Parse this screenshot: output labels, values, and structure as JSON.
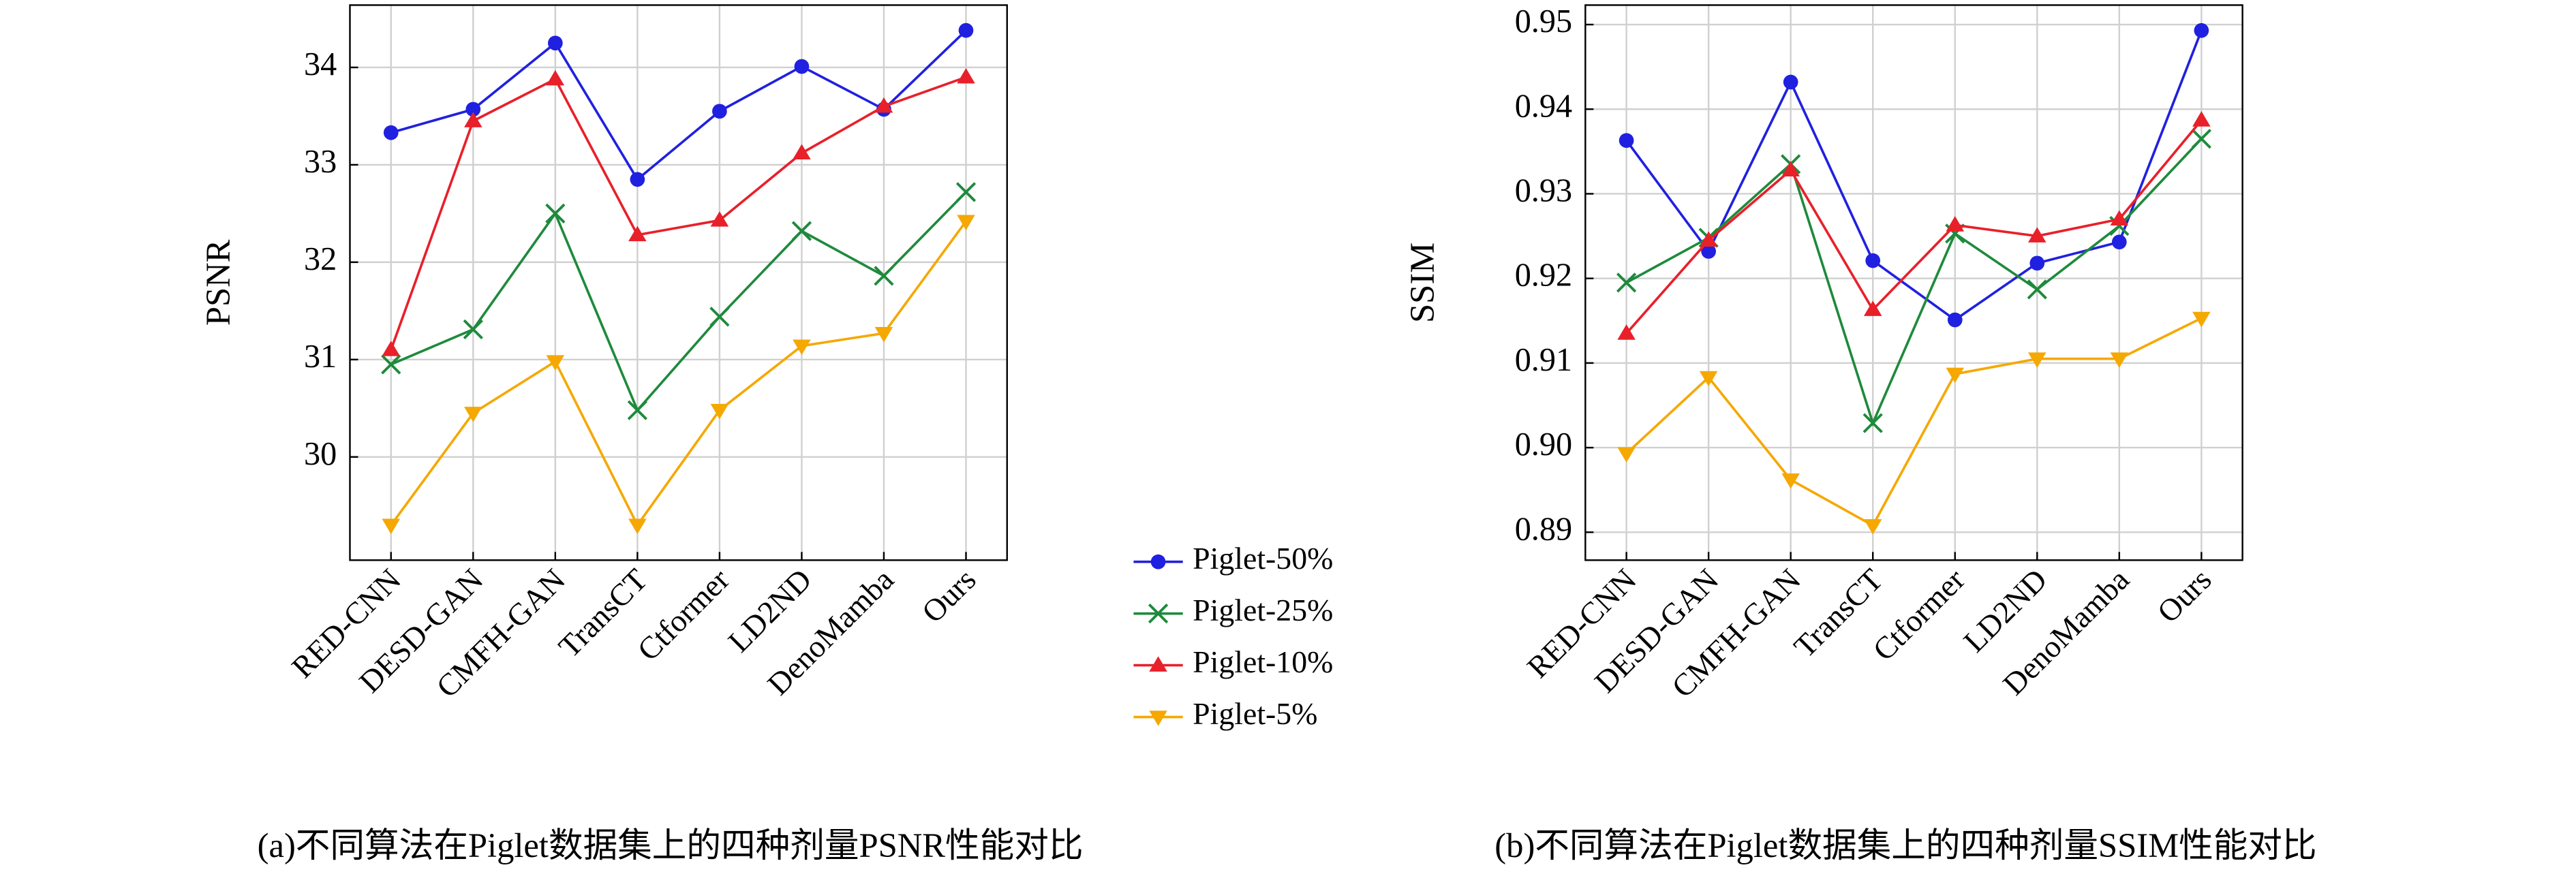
{
  "chart_data": [
    {
      "type": "line",
      "ylabel": "PSNR",
      "caption": "(a)不同算法在Piglet数据集上的四种剂量PSNR性能对比",
      "categories": [
        "RED-CNN",
        "DESD-GAN",
        "CMFH-GAN",
        "TransCT",
        "Ctformer",
        "LD2ND",
        "DenoMamba",
        "Ours"
      ],
      "series": [
        {
          "name": "Piglet-50%",
          "color": "#2020e0",
          "marker": "o",
          "values": [
            33.33,
            33.57,
            34.25,
            32.85,
            33.55,
            34.01,
            33.57,
            34.38
          ]
        },
        {
          "name": "Piglet-25%",
          "color": "#1e8a3c",
          "marker": "x",
          "values": [
            30.95,
            31.31,
            32.5,
            30.48,
            31.44,
            32.32,
            31.86,
            32.72
          ]
        },
        {
          "name": "Piglet-10%",
          "color": "#e8202a",
          "marker": "^",
          "values": [
            31.1,
            33.45,
            33.88,
            32.28,
            32.43,
            33.12,
            33.6,
            33.9
          ]
        },
        {
          "name": "Piglet-5%",
          "color": "#f5a800",
          "marker": "v",
          "values": [
            29.3,
            30.45,
            30.98,
            29.3,
            30.48,
            31.14,
            31.27,
            32.42
          ]
        }
      ],
      "ylim": [
        28.94,
        34.64
      ],
      "yticks": [
        30,
        31,
        32,
        33,
        34
      ],
      "grid": true
    },
    {
      "type": "line",
      "ylabel": "SSIM",
      "caption": "(b)不同算法在Piglet数据集上的四种剂量SSIM性能对比",
      "categories": [
        "RED-CNN",
        "DESD-GAN",
        "CMFH-GAN",
        "TransCT",
        "Ctformer",
        "LD2ND",
        "DenoMamba",
        "Ours"
      ],
      "series": [
        {
          "name": "Piglet-50%",
          "color": "#2020e0",
          "marker": "o",
          "values": [
            0.9363,
            0.9232,
            0.9432,
            0.9221,
            0.9151,
            0.9218,
            0.9243,
            0.9493
          ]
        },
        {
          "name": "Piglet-25%",
          "color": "#1e8a3c",
          "marker": "x",
          "values": [
            0.9195,
            0.9248,
            0.9335,
            0.9029,
            0.9253,
            0.9187,
            0.9262,
            0.9365
          ]
        },
        {
          "name": "Piglet-10%",
          "color": "#e8202a",
          "marker": "^",
          "values": [
            0.9135,
            0.9245,
            0.9328,
            0.9163,
            0.9263,
            0.925,
            0.927,
            0.9387
          ]
        },
        {
          "name": "Piglet-5%",
          "color": "#f5a800",
          "marker": "v",
          "values": [
            0.8993,
            0.9083,
            0.8962,
            0.8908,
            0.9087,
            0.9105,
            0.9105,
            0.9153
          ]
        }
      ],
      "ylim": [
        0.8867,
        0.9523
      ],
      "yticks": [
        0.89,
        {
          "value": 0.9,
          "label": "0.90"
        },
        0.91,
        0.92,
        0.93,
        0.94,
        0.95
      ],
      "grid": true
    }
  ]
}
